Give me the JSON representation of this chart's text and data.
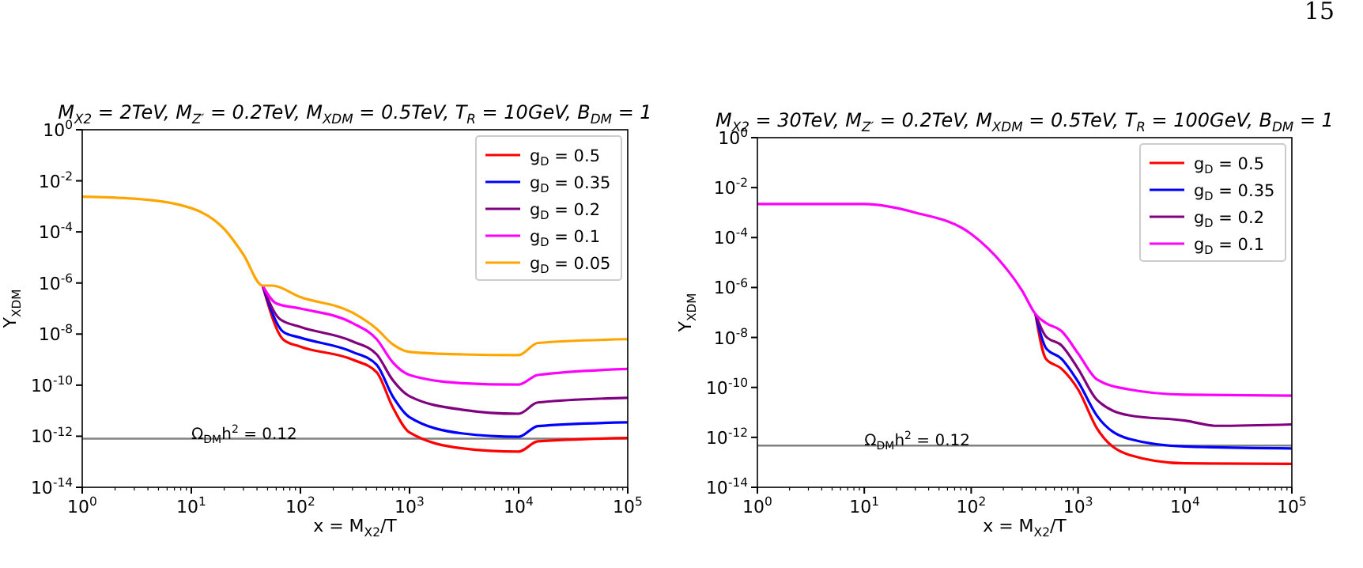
{
  "chart_data": [
    {
      "type": "line",
      "title": "M$_{X2}$ = 2TeV, M$_{Z′}$ = 0.2TeV, M$_{XDM}$ = 0.5TeV, T$_{R}$ = 10GeV, B$_{DM}$ = 1",
      "xlabel": "x = M$_{X2}$/T",
      "ylabel": "Y$_{XDM}$",
      "log": "xy",
      "grid": false,
      "legend": "top right",
      "line_style": "solid",
      "marker": "none",
      "annotations": [
        {
          "text": "Ω$_{DM}$h$^{2}$ = 0.12",
          "x": 10,
          "y": 8e-13
        }
      ],
      "xlim": [
        1,
        100000
      ],
      "ylim": [
        1e-14,
        1
      ],
      "xticks": [
        {
          "value": 1,
          "label": "10$^{0}$"
        },
        {
          "value": 10,
          "label": "10$^{1}$"
        },
        {
          "value": 100,
          "label": "10$^{2}$"
        },
        {
          "value": 1000,
          "label": "10$^{3}$"
        },
        {
          "value": 10000,
          "label": "10$^{4}$"
        },
        {
          "value": 100000,
          "label": "10$^{5}$"
        }
      ],
      "yticks": [
        {
          "value": 1e-14,
          "label": "10$^{-14}$"
        },
        {
          "value": 1e-12,
          "label": "10$^{-12}$"
        },
        {
          "value": 1e-10,
          "label": "10$^{-10}$"
        },
        {
          "value": 1e-08,
          "label": "10$^{-8}$"
        },
        {
          "value": 1e-06,
          "label": "10$^{-6}$"
        },
        {
          "value": 0.0001,
          "label": "10$^{-4}$"
        },
        {
          "value": 0.01,
          "label": "10$^{-2}$"
        },
        {
          "value": 1,
          "label": "10$^{0}$"
        }
      ],
      "ref_lines": [
        {
          "axis": "y",
          "value": 8e-13,
          "color": "#808080"
        }
      ],
      "series": [
        {
          "name": "g$_{D}$ = 0.5",
          "color": "#ff0000",
          "x": [
            45,
            70,
            100,
            300,
            500,
            700,
            1000,
            3000,
            10000,
            15000,
            100000
          ],
          "values": [
            7.9e-07,
            6e-09,
            3.2e-09,
            1e-09,
            3.2e-10,
            1.4e-11,
            1.4e-12,
            3.4e-13,
            2.5e-13,
            6.3e-13,
            8.5e-13
          ]
        },
        {
          "name": "g$_{D}$ = 0.35",
          "color": "#0000ff",
          "x": [
            45,
            70,
            100,
            300,
            500,
            700,
            1000,
            3000,
            10000,
            15000,
            100000
          ],
          "values": [
            7.9e-07,
            1.2e-08,
            7.2e-09,
            2e-09,
            6.3e-10,
            3.7e-11,
            5.6e-12,
            1.3e-12,
            9.5e-13,
            2.5e-12,
            3.5e-12
          ]
        },
        {
          "name": "g$_{D}$ = 0.2",
          "color": "#800080",
          "x": [
            45,
            65,
            100,
            300,
            500,
            700,
            1000,
            3000,
            10000,
            15000,
            100000
          ],
          "values": [
            7.9e-07,
            3.8e-08,
            1.9e-08,
            5.2e-09,
            1.6e-09,
            1.6e-10,
            3.7e-11,
            1.1e-11,
            7.6e-12,
            2.1e-11,
            3.2e-11
          ]
        },
        {
          "name": "g$_{D}$ = 0.1",
          "color": "#ff00ff",
          "x": [
            45,
            60,
            100,
            300,
            500,
            700,
            1000,
            3000,
            10000,
            15000,
            100000
          ],
          "values": [
            7.9e-07,
            1.6e-07,
            1e-07,
            2.7e-08,
            6.3e-09,
            7.9e-10,
            2.5e-10,
            1.2e-10,
            1.05e-10,
            2.5e-10,
            4.3e-10
          ]
        },
        {
          "name": "g$_{D}$ = 0.05",
          "color": "#ffa500",
          "x": [
            1,
            3,
            10,
            20,
            30,
            45,
            55,
            100,
            300,
            500,
            700,
            1000,
            3000,
            10000,
            15000,
            100000
          ],
          "values": [
            0.0024,
            0.002,
            0.00085,
            0.00013,
            1.3e-05,
            7.9e-07,
            7.9e-07,
            2.8e-07,
            6.9e-08,
            1.6e-08,
            4e-09,
            2e-09,
            1.6e-09,
            1.5e-09,
            4.5e-09,
            6.3e-09
          ]
        }
      ]
    },
    {
      "type": "line",
      "title": "M$_{X2}$ = 30TeV, M$_{Z′}$ = 0.2TeV, M$_{XDM}$ = 0.5TeV, T$_{R}$ = 100GeV, B$_{DM}$ = 1",
      "xlabel": "x = M$_{X2}$/T",
      "ylabel": "Y$_{XDM}$",
      "log": "xy",
      "grid": false,
      "legend": "top right",
      "line_style": "solid",
      "marker": "none",
      "annotations": [
        "15",
        {
          "text": "Ω$_{DM}$h$^{2}$ = 0.12",
          "x": 10,
          "y": 4.7e-13
        }
      ],
      "xlim": [
        1,
        100000
      ],
      "ylim": [
        1e-14,
        1
      ],
      "xticks": [
        {
          "value": 1,
          "label": "10$^{0}$"
        },
        {
          "value": 10,
          "label": "10$^{1}$"
        },
        {
          "value": 100,
          "label": "10$^{2}$"
        },
        {
          "value": 1000,
          "label": "10$^{3}$"
        },
        {
          "value": 10000,
          "label": "10$^{4}$"
        },
        {
          "value": 100000,
          "label": "10$^{5}$"
        }
      ],
      "yticks": [
        {
          "value": 1e-14,
          "label": "10$^{-14}$"
        },
        {
          "value": 1e-12,
          "label": "10$^{-12}$"
        },
        {
          "value": 1e-10,
          "label": "10$^{-10}$"
        },
        {
          "value": 1e-08,
          "label": "10$^{-8}$"
        },
        {
          "value": 1e-06,
          "label": "10$^{-6}$"
        },
        {
          "value": 0.0001,
          "label": "10$^{-4}$"
        },
        {
          "value": 0.01,
          "label": "10$^{-2}$"
        },
        {
          "value": 1,
          "label": "10$^{0}$"
        }
      ],
      "ref_lines": [
        {
          "axis": "y",
          "value": 4.7e-13,
          "color": "#808080"
        }
      ],
      "series": [
        {
          "name": "g$_{D}$ = 0.5",
          "color": "#ff0000",
          "x": [
            400,
            500,
            700,
            1000,
            1500,
            3000,
            10000,
            100000
          ],
          "values": [
            8.5e-08,
            1.4e-09,
            5.6e-10,
            8.3e-11,
            2.3e-12,
            2e-13,
            9.1e-14,
            8.7e-14
          ]
        },
        {
          "name": "g$_{D}$ = 0.35",
          "color": "#0000ff",
          "x": [
            400,
            500,
            700,
            1000,
            1500,
            3000,
            10000,
            100000
          ],
          "values": [
            8.5e-08,
            3.8e-09,
            1.4e-09,
            1.7e-10,
            7.4e-12,
            8.7e-13,
            4.3e-13,
            3.6e-13
          ]
        },
        {
          "name": "g$_{D}$ = 0.2",
          "color": "#800080",
          "x": [
            400,
            500,
            700,
            1000,
            1500,
            3000,
            10000,
            20000,
            100000
          ],
          "values": [
            8.5e-08,
            1.1e-08,
            4.8e-09,
            5.6e-10,
            3.2e-11,
            7.6e-12,
            4.7e-12,
            2.9e-12,
            3.3e-12
          ]
        },
        {
          "name": "g$_{D}$ = 0.1",
          "color": "#ff00ff",
          "x": [
            1,
            10,
            30,
            100,
            200,
            300,
            400,
            500,
            700,
            1000,
            1500,
            3000,
            10000,
            100000
          ],
          "values": [
            0.0022,
            0.0022,
            0.001,
            0.00014,
            8e-06,
            7.4e-07,
            8.5e-08,
            3.8e-08,
            1.8e-08,
            2.3e-09,
            2.1e-10,
            8.3e-11,
            5.1e-11,
            4.7e-11
          ]
        }
      ]
    }
  ]
}
